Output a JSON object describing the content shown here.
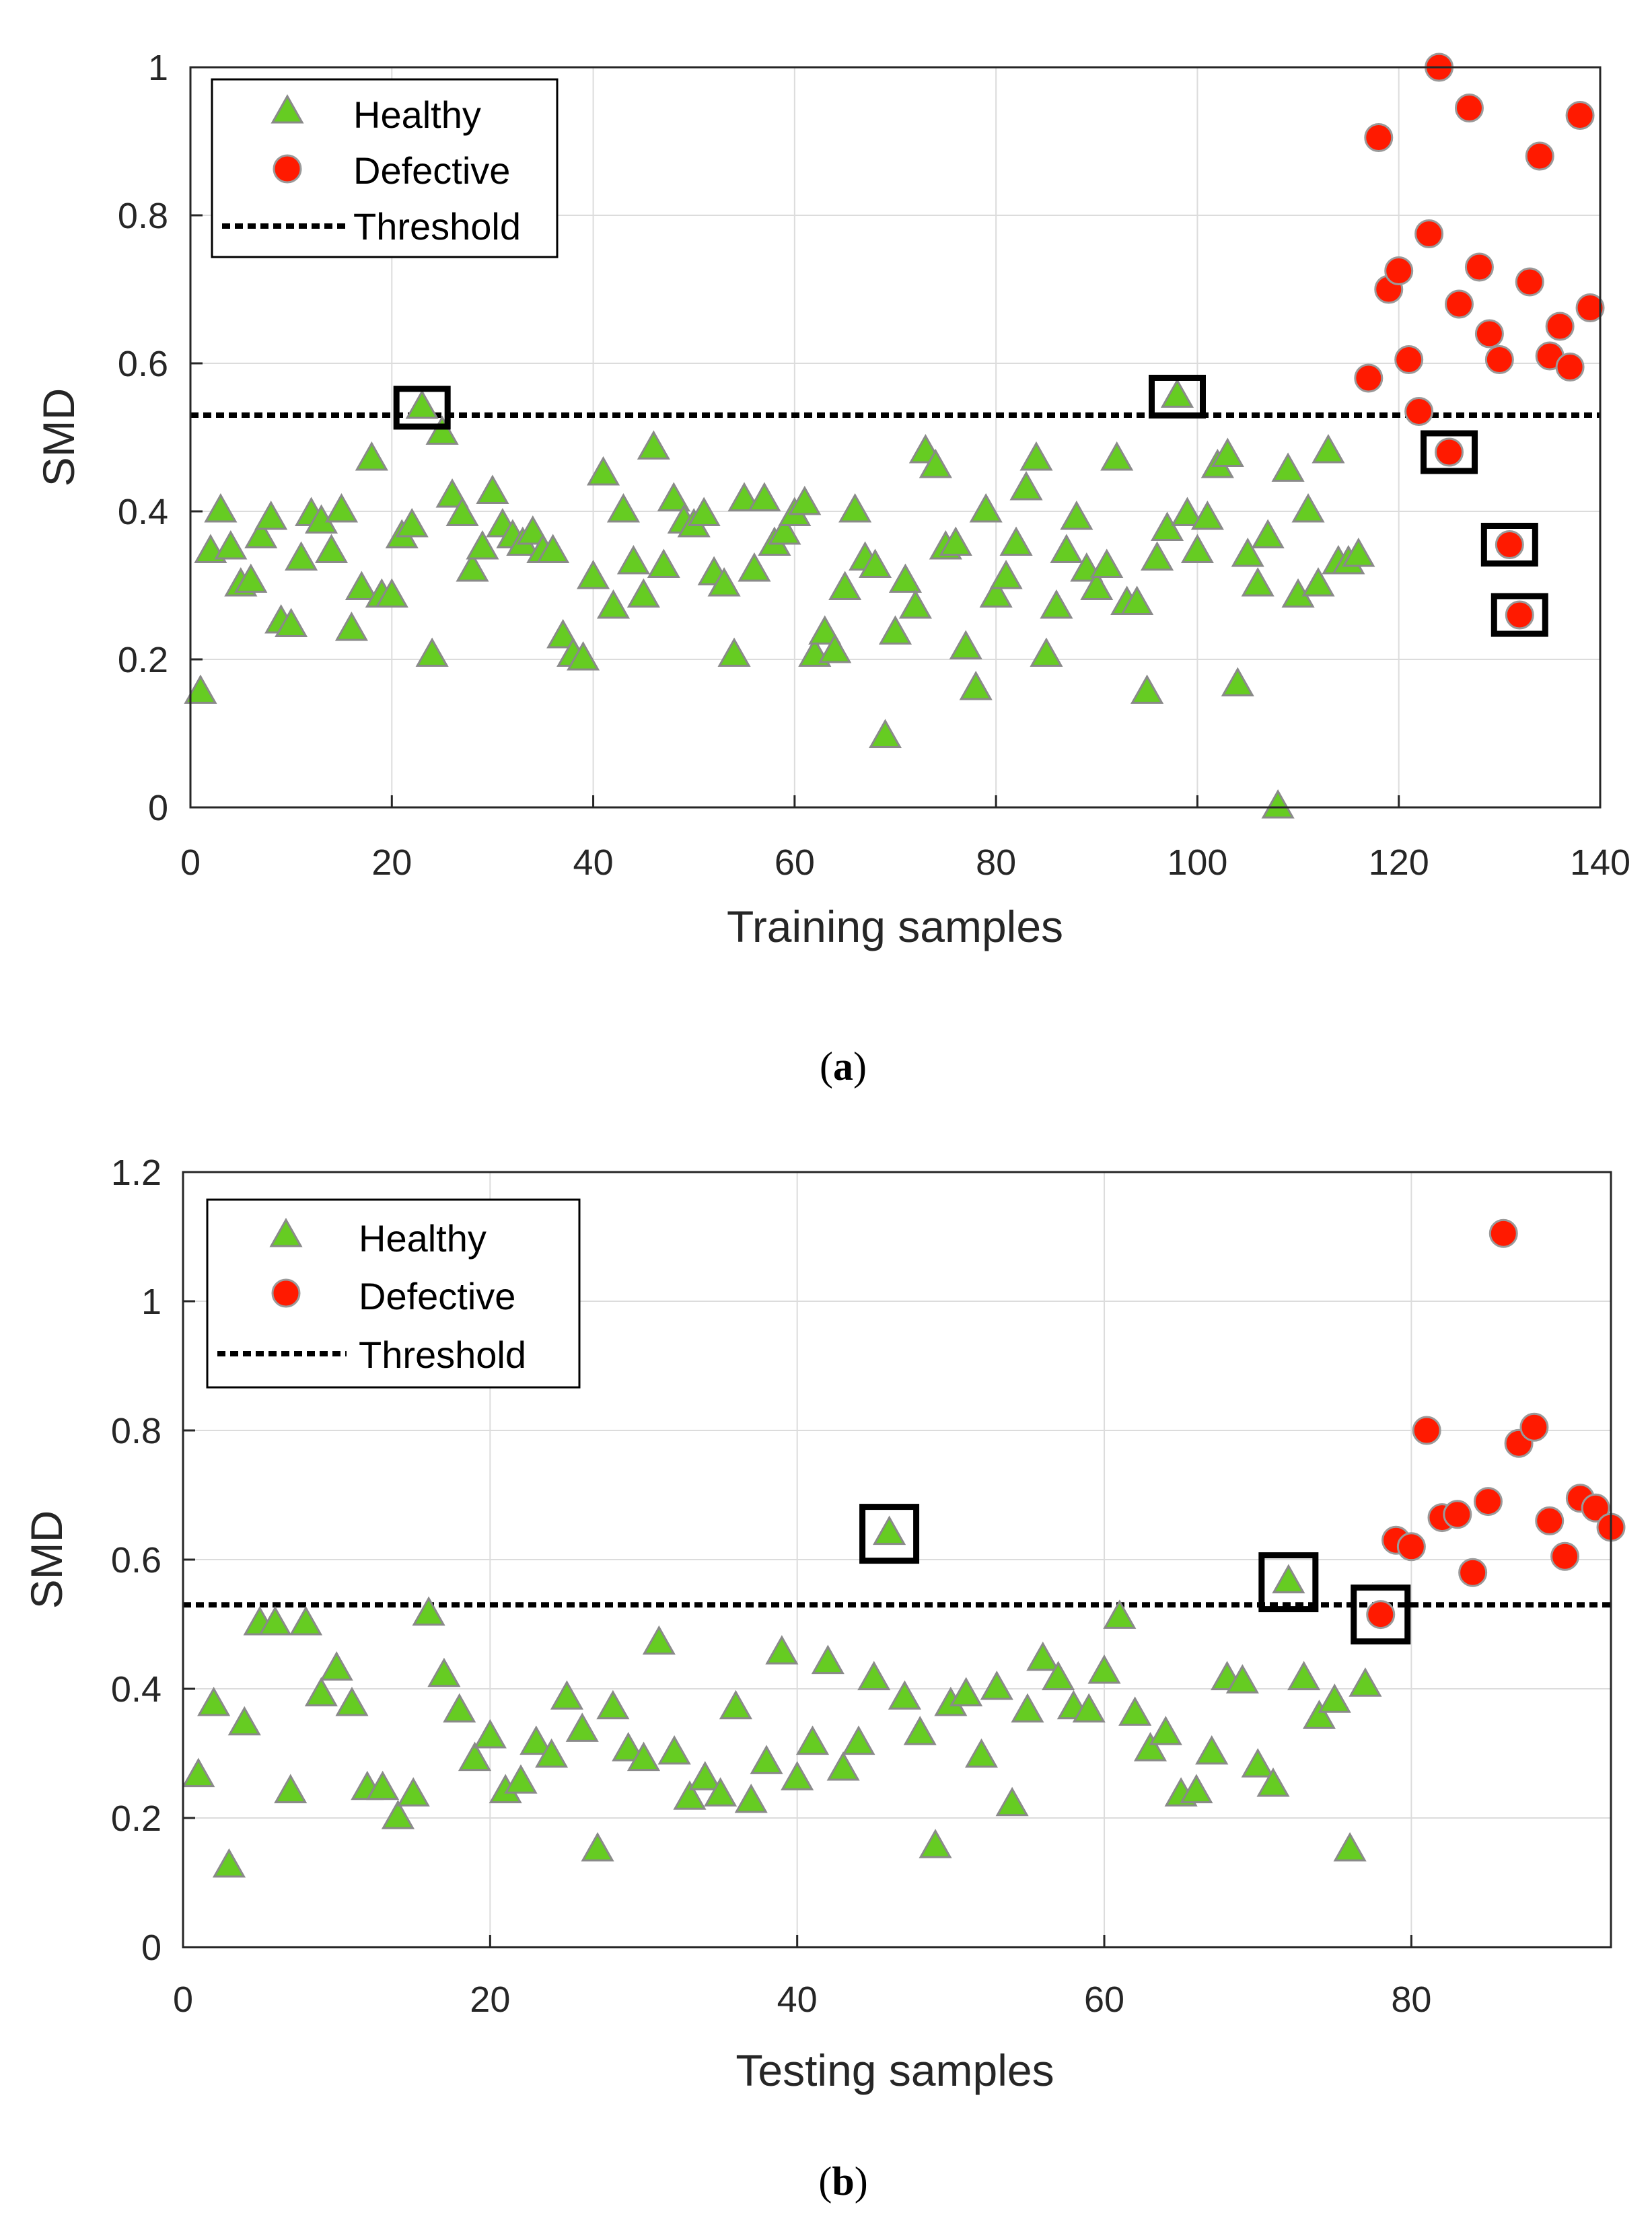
{
  "colors": {
    "healthy": "#66cc22",
    "healthy_edge": "#8a8a8a",
    "defective": "#ff1a00",
    "defective_edge": "#9a9a9a",
    "threshold": "#000000",
    "grid": "#dcdcdc",
    "axes": "#262626"
  },
  "chart_data": [
    {
      "type": "scatter",
      "caption_label": "a",
      "xlabel": "Training samples",
      "ylabel": "SMD",
      "xlim": [
        0,
        140
      ],
      "ylim": [
        0,
        1
      ],
      "xticks": [
        "0",
        "20",
        "40",
        "60",
        "80",
        "100",
        "120",
        "140"
      ],
      "yticks": [
        "0",
        "0.2",
        "0.4",
        "0.6",
        "0.8",
        "1"
      ],
      "grid": true,
      "legend_position": "top-left",
      "legend": {
        "healthy": "Healthy",
        "defective": "Defective",
        "threshold": "Threshold"
      },
      "threshold": 0.53,
      "series": [
        {
          "name": "Healthy",
          "marker": "triangle",
          "points": [
            [
              1,
              0.155
            ],
            [
              2,
              0.345
            ],
            [
              3,
              0.4
            ],
            [
              4,
              0.35
            ],
            [
              5,
              0.3
            ],
            [
              6,
              0.305
            ],
            [
              7,
              0.365
            ],
            [
              8,
              0.39
            ],
            [
              9,
              0.25
            ],
            [
              10,
              0.245
            ],
            [
              11,
              0.335
            ],
            [
              12,
              0.395
            ],
            [
              13,
              0.385
            ],
            [
              14,
              0.345
            ],
            [
              15,
              0.4
            ],
            [
              16,
              0.24
            ],
            [
              17,
              0.295
            ],
            [
              18,
              0.47
            ],
            [
              19,
              0.285
            ],
            [
              20,
              0.285
            ],
            [
              21,
              0.365
            ],
            [
              22,
              0.38
            ],
            [
              23,
              0.54
            ],
            [
              24,
              0.205
            ],
            [
              25,
              0.505
            ],
            [
              26,
              0.42
            ],
            [
              27,
              0.395
            ],
            [
              28,
              0.32
            ],
            [
              29,
              0.35
            ],
            [
              30,
              0.425
            ],
            [
              31,
              0.38
            ],
            [
              32,
              0.365
            ],
            [
              33,
              0.355
            ],
            [
              34,
              0.37
            ],
            [
              35,
              0.345
            ],
            [
              36,
              0.345
            ],
            [
              37,
              0.23
            ],
            [
              38,
              0.205
            ],
            [
              39,
              0.2
            ],
            [
              40,
              0.31
            ],
            [
              41,
              0.45
            ],
            [
              42,
              0.27
            ],
            [
              43,
              0.4
            ],
            [
              44,
              0.33
            ],
            [
              45,
              0.285
            ],
            [
              46,
              0.485
            ],
            [
              47,
              0.325
            ],
            [
              48,
              0.415
            ],
            [
              49,
              0.385
            ],
            [
              50,
              0.38
            ],
            [
              51,
              0.395
            ],
            [
              52,
              0.315
            ],
            [
              53,
              0.3
            ],
            [
              54,
              0.205
            ],
            [
              55,
              0.415
            ],
            [
              56,
              0.32
            ],
            [
              57,
              0.415
            ],
            [
              58,
              0.355
            ],
            [
              59,
              0.37
            ],
            [
              60,
              0.395
            ],
            [
              61,
              0.41
            ],
            [
              62,
              0.205
            ],
            [
              63,
              0.235
            ],
            [
              64,
              0.21
            ],
            [
              65,
              0.295
            ],
            [
              66,
              0.4
            ],
            [
              67,
              0.335
            ],
            [
              68,
              0.325
            ],
            [
              69,
              0.095
            ],
            [
              70,
              0.235
            ],
            [
              71,
              0.305
            ],
            [
              72,
              0.27
            ],
            [
              73,
              0.48
            ],
            [
              74,
              0.46
            ],
            [
              75,
              0.35
            ],
            [
              76,
              0.355
            ],
            [
              77,
              0.215
            ],
            [
              78,
              0.16
            ],
            [
              79,
              0.4
            ],
            [
              80,
              0.285
            ],
            [
              81,
              0.31
            ],
            [
              82,
              0.355
            ],
            [
              83,
              0.43
            ],
            [
              84,
              0.47
            ],
            [
              85,
              0.205
            ],
            [
              86,
              0.27
            ],
            [
              87,
              0.345
            ],
            [
              88,
              0.39
            ],
            [
              89,
              0.32
            ],
            [
              90,
              0.295
            ],
            [
              91,
              0.325
            ],
            [
              92,
              0.47
            ],
            [
              93,
              0.275
            ],
            [
              94,
              0.275
            ],
            [
              95,
              0.155
            ],
            [
              96,
              0.335
            ],
            [
              97,
              0.375
            ],
            [
              98,
              0.555
            ],
            [
              99,
              0.395
            ],
            [
              100,
              0.345
            ],
            [
              101,
              0.39
            ],
            [
              102,
              0.46
            ],
            [
              103,
              0.475
            ],
            [
              104,
              0.165
            ],
            [
              105,
              0.34
            ],
            [
              106,
              0.3
            ],
            [
              107,
              0.365
            ],
            [
              108,
              0.0
            ],
            [
              109,
              0.455
            ],
            [
              110,
              0.285
            ],
            [
              111,
              0.4
            ],
            [
              112,
              0.3
            ],
            [
              113,
              0.48
            ],
            [
              114,
              0.33
            ],
            [
              115,
              0.33
            ],
            [
              116,
              0.34
            ]
          ]
        },
        {
          "name": "Defective",
          "marker": "circle",
          "points": [
            [
              117,
              0.58
            ],
            [
              118,
              0.905
            ],
            [
              119,
              0.7
            ],
            [
              120,
              0.725
            ],
            [
              121,
              0.605
            ],
            [
              122,
              0.535
            ],
            [
              123,
              0.775
            ],
            [
              124,
              1.0
            ],
            [
              125,
              0.48
            ],
            [
              126,
              0.68
            ],
            [
              127,
              0.945
            ],
            [
              128,
              0.73
            ],
            [
              129,
              0.64
            ],
            [
              130,
              0.605
            ],
            [
              131,
              0.355
            ],
            [
              132,
              0.26
            ],
            [
              133,
              0.71
            ],
            [
              134,
              0.88
            ],
            [
              135,
              0.61
            ],
            [
              136,
              0.65
            ],
            [
              137,
              0.595
            ],
            [
              138,
              0.935
            ],
            [
              139,
              0.675
            ]
          ]
        }
      ],
      "highlighted_points": [
        [
          23,
          0.54
        ],
        [
          98,
          0.555
        ],
        [
          125,
          0.48
        ],
        [
          131,
          0.355
        ],
        [
          132,
          0.26
        ]
      ]
    },
    {
      "type": "scatter",
      "caption_label": "b",
      "xlabel": "Testing samples",
      "ylabel": "SMD",
      "xlim": [
        0,
        93
      ],
      "ylim": [
        0,
        1.2
      ],
      "xticks": [
        "0",
        "20",
        "40",
        "60",
        "80"
      ],
      "yticks": [
        "0",
        "0.2",
        "0.4",
        "0.6",
        "0.8",
        "1",
        "1.2"
      ],
      "grid": true,
      "legend_position": "top-left",
      "legend": {
        "healthy": "Healthy",
        "defective": "Defective",
        "threshold": "Threshold"
      },
      "threshold": 0.53,
      "series": [
        {
          "name": "Healthy",
          "marker": "triangle",
          "points": [
            [
              1,
              0.265
            ],
            [
              2,
              0.375
            ],
            [
              3,
              0.125
            ],
            [
              4,
              0.345
            ],
            [
              5,
              0.5
            ],
            [
              6,
              0.5
            ],
            [
              7,
              0.24
            ],
            [
              8,
              0.5
            ],
            [
              9,
              0.39
            ],
            [
              10,
              0.43
            ],
            [
              11,
              0.375
            ],
            [
              12,
              0.245
            ],
            [
              13,
              0.245
            ],
            [
              14,
              0.2
            ],
            [
              15,
              0.235
            ],
            [
              16,
              0.515
            ],
            [
              17,
              0.42
            ],
            [
              18,
              0.365
            ],
            [
              19,
              0.29
            ],
            [
              20,
              0.325
            ],
            [
              21,
              0.24
            ],
            [
              22,
              0.255
            ],
            [
              23,
              0.315
            ],
            [
              24,
              0.295
            ],
            [
              25,
              0.385
            ],
            [
              26,
              0.335
            ],
            [
              27,
              0.15
            ],
            [
              28,
              0.37
            ],
            [
              29,
              0.305
            ],
            [
              30,
              0.29
            ],
            [
              31,
              0.47
            ],
            [
              32,
              0.3
            ],
            [
              33,
              0.23
            ],
            [
              34,
              0.26
            ],
            [
              35,
              0.235
            ],
            [
              36,
              0.37
            ],
            [
              37,
              0.225
            ],
            [
              38,
              0.285
            ],
            [
              39,
              0.455
            ],
            [
              40,
              0.26
            ],
            [
              41,
              0.315
            ],
            [
              42,
              0.44
            ],
            [
              43,
              0.275
            ],
            [
              44,
              0.315
            ],
            [
              45,
              0.415
            ],
            [
              46,
              0.64
            ],
            [
              47,
              0.385
            ],
            [
              48,
              0.33
            ],
            [
              49,
              0.155
            ],
            [
              50,
              0.375
            ],
            [
              51,
              0.39
            ],
            [
              52,
              0.295
            ],
            [
              53,
              0.4
            ],
            [
              54,
              0.22
            ],
            [
              55,
              0.365
            ],
            [
              56,
              0.445
            ],
            [
              57,
              0.415
            ],
            [
              58,
              0.37
            ],
            [
              59,
              0.365
            ],
            [
              60,
              0.425
            ],
            [
              61,
              0.51
            ],
            [
              62,
              0.36
            ],
            [
              63,
              0.305
            ],
            [
              64,
              0.33
            ],
            [
              65,
              0.235
            ],
            [
              66,
              0.24
            ],
            [
              67,
              0.3
            ],
            [
              68,
              0.415
            ],
            [
              69,
              0.41
            ],
            [
              70,
              0.28
            ],
            [
              71,
              0.25
            ],
            [
              72,
              0.565
            ],
            [
              73,
              0.415
            ],
            [
              74,
              0.355
            ],
            [
              75,
              0.38
            ],
            [
              76,
              0.15
            ],
            [
              77,
              0.405
            ]
          ]
        },
        {
          "name": "Defective",
          "marker": "circle",
          "points": [
            [
              78,
              0.515
            ],
            [
              79,
              0.63
            ],
            [
              80,
              0.62
            ],
            [
              81,
              0.8
            ],
            [
              82,
              0.665
            ],
            [
              83,
              0.67
            ],
            [
              84,
              0.58
            ],
            [
              85,
              0.69
            ],
            [
              86,
              1.105
            ],
            [
              87,
              0.78
            ],
            [
              88,
              0.805
            ],
            [
              89,
              0.66
            ],
            [
              90,
              0.605
            ],
            [
              91,
              0.695
            ],
            [
              92,
              0.68
            ],
            [
              93,
              0.65
            ]
          ]
        }
      ],
      "highlighted_points": [
        [
          46,
          0.64
        ],
        [
          72,
          0.565
        ],
        [
          78,
          0.515
        ]
      ]
    }
  ]
}
